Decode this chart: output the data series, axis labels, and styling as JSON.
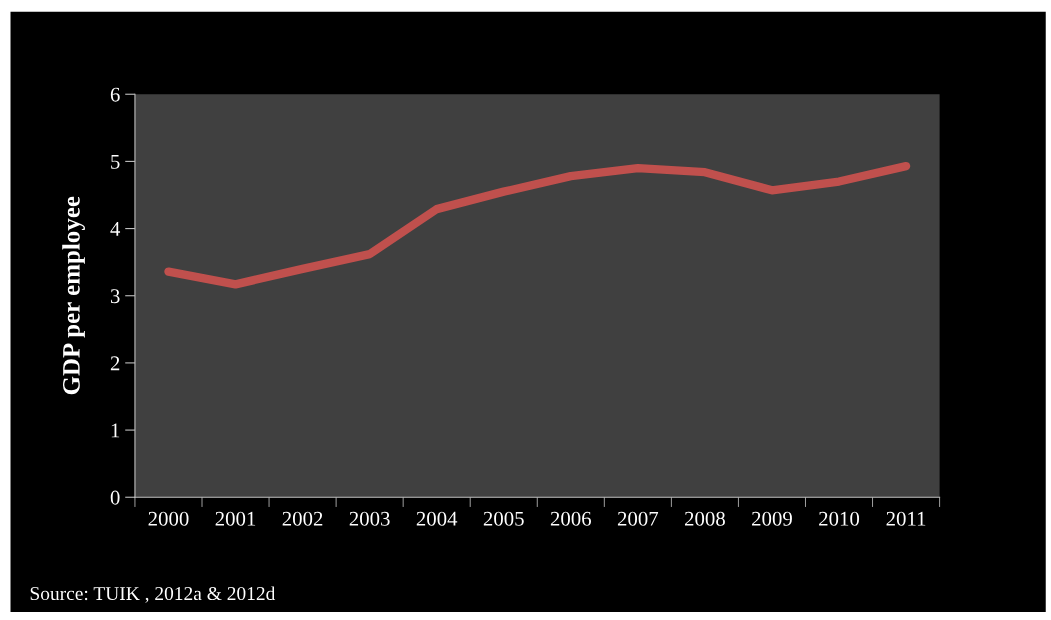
{
  "chart_data": {
    "type": "line",
    "ylabel": "GDP per employee",
    "categories": [
      "2000",
      "2001",
      "2002",
      "2003",
      "2004",
      "2005",
      "2006",
      "2007",
      "2008",
      "2009",
      "2010",
      "2011"
    ],
    "series": [
      {
        "color": "#c0504d",
        "values": [
          3.36,
          3.17,
          3.4,
          3.62,
          4.29,
          4.55,
          4.78,
          4.9,
          4.84,
          4.57,
          4.7,
          4.93
        ]
      }
    ],
    "ylim": [
      0,
      6
    ],
    "yticks": [
      0,
      1,
      2,
      3,
      4,
      5,
      6
    ],
    "grid": false,
    "marker": "none",
    "line_style": "solid",
    "annotations": [
      "Source: TUIK , 2012a & 2012d"
    ]
  }
}
